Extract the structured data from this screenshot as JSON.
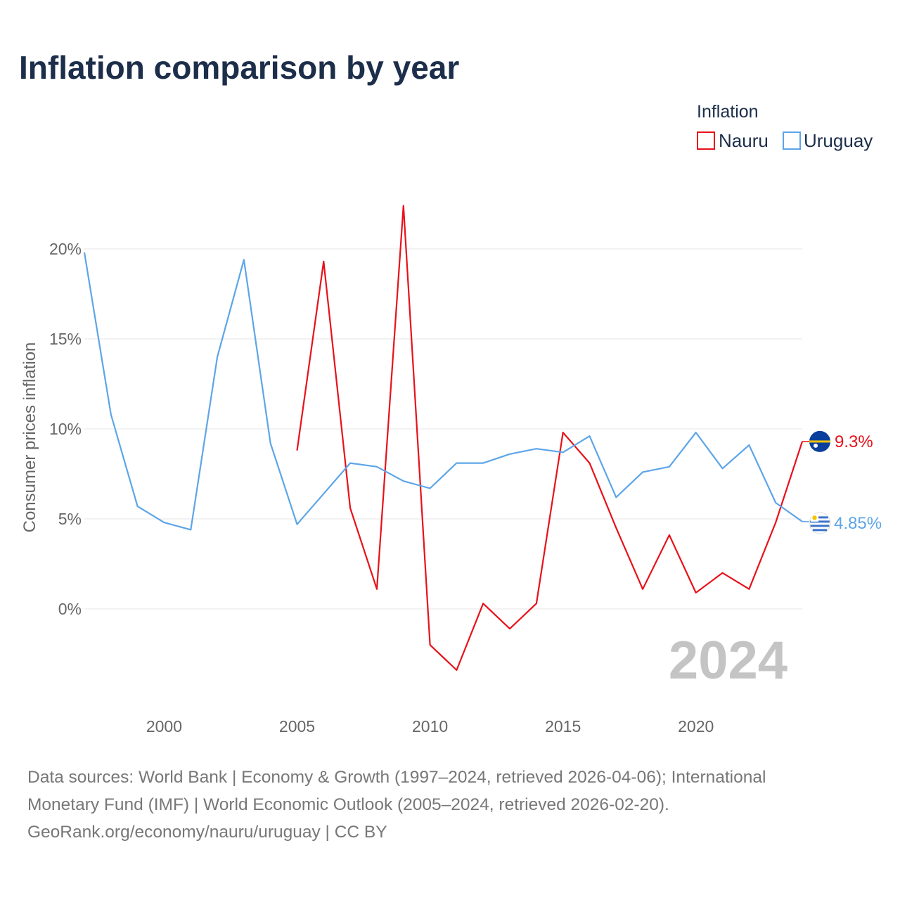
{
  "chart_data": {
    "type": "line",
    "title": "Inflation comparison by year",
    "ylabel": "Consumer prices inflation",
    "xlabel": "",
    "xlim": [
      1997,
      2024
    ],
    "ylim": [
      -5,
      22.5
    ],
    "yticks": [
      0,
      5,
      10,
      15,
      20
    ],
    "ytick_labels": [
      "0%",
      "5%",
      "10%",
      "15%",
      "20%"
    ],
    "xticks": [
      2000,
      2005,
      2010,
      2015,
      2020
    ],
    "xtick_labels": [
      "2000",
      "2005",
      "2010",
      "2015",
      "2020"
    ],
    "legend_title": "Inflation",
    "legend_position": "top-right",
    "year_watermark": "2024",
    "series": [
      {
        "name": "Nauru",
        "color": "#e8111a",
        "end_label": "9.3%",
        "x": [
          2005,
          2006,
          2007,
          2008,
          2009,
          2010,
          2011,
          2012,
          2013,
          2014,
          2015,
          2016,
          2017,
          2018,
          2019,
          2020,
          2021,
          2022,
          2023,
          2024
        ],
        "values": [
          8.8,
          19.3,
          5.6,
          1.1,
          22.4,
          -2.0,
          -3.4,
          0.3,
          -1.1,
          0.3,
          9.8,
          8.1,
          4.5,
          1.1,
          4.1,
          0.9,
          2.0,
          1.1,
          4.8,
          9.3
        ]
      },
      {
        "name": "Uruguay",
        "color": "#5da5e8",
        "end_label": "4.85%",
        "x": [
          1997,
          1998,
          1999,
          2000,
          2001,
          2002,
          2003,
          2004,
          2005,
          2006,
          2007,
          2008,
          2009,
          2010,
          2011,
          2012,
          2013,
          2014,
          2015,
          2016,
          2017,
          2018,
          2019,
          2020,
          2021,
          2022,
          2023,
          2024
        ],
        "values": [
          19.8,
          10.8,
          5.7,
          4.8,
          4.4,
          14.0,
          19.4,
          9.2,
          4.7,
          6.4,
          8.1,
          7.9,
          7.1,
          6.7,
          8.1,
          8.1,
          8.6,
          8.9,
          8.7,
          9.6,
          6.2,
          7.6,
          7.9,
          9.8,
          7.8,
          9.1,
          5.9,
          4.85
        ]
      }
    ]
  },
  "source_lines": [
    "Data sources: World Bank | Economy & Growth (1997–2024, retrieved 2026-04-06); International",
    "Monetary Fund (IMF) | World Economic Outlook (2005–2024, retrieved 2026-02-20).",
    "GeoRank.org/economy/nauru/uruguay | CC BY"
  ],
  "colors": {
    "title": "#1c2e4a",
    "grid": "#e6e6e6",
    "axis_text": "#666666",
    "watermark": "#c4c4c4",
    "nauru_flag_blue": "#0b3f9c",
    "nauru_flag_yellow": "#f6c400",
    "uruguay_flag_blue": "#3b74c8",
    "uruguay_sun": "#f6c400"
  }
}
